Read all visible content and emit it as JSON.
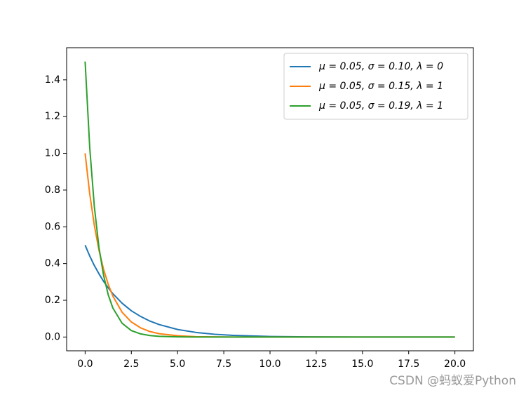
{
  "chart_data": {
    "type": "line",
    "x": [
      0,
      0.25,
      0.5,
      0.75,
      1,
      1.25,
      1.5,
      2,
      2.5,
      3,
      3.5,
      4,
      5,
      6,
      7,
      8,
      10,
      12,
      15,
      20
    ],
    "series": [
      {
        "name": "μ = 0.05,  σ = 0.10,  λ = 0",
        "color": "#1f77b4",
        "values": [
          0.5,
          0.441,
          0.389,
          0.344,
          0.303,
          0.268,
          0.236,
          0.184,
          0.143,
          0.112,
          0.087,
          0.068,
          0.041,
          0.025,
          0.015,
          0.009,
          0.003,
          0.001,
          0,
          0
        ]
      },
      {
        "name": "μ = 0.05,  σ = 0.15,  λ = 1",
        "color": "#ff7f0e",
        "values": [
          1,
          0.779,
          0.607,
          0.472,
          0.368,
          0.287,
          0.223,
          0.135,
          0.082,
          0.05,
          0.03,
          0.018,
          0.007,
          0.002,
          0.001,
          0,
          0,
          0,
          0,
          0
        ]
      },
      {
        "name": "μ = 0.05,  σ = 0.19,  λ = 1",
        "color": "#2ca02c",
        "values": [
          1.5,
          1.031,
          0.709,
          0.487,
          0.335,
          0.23,
          0.158,
          0.075,
          0.035,
          0.017,
          0.008,
          0.004,
          0.001,
          0,
          0,
          0,
          0,
          0,
          0,
          0
        ]
      }
    ],
    "xlim": [
      -1,
      21
    ],
    "ylim": [
      -0.075,
      1.575
    ],
    "xticks": [
      {
        "value": 0,
        "label": "0.0"
      },
      2.5,
      {
        "value": 5,
        "label": "5.0"
      },
      7.5,
      {
        "value": 10,
        "label": "10.0"
      },
      12.5,
      {
        "value": 15,
        "label": "15.0"
      },
      17.5,
      {
        "value": 20,
        "label": "20.0"
      }
    ],
    "yticks": [
      {
        "value": 0,
        "label": "0.0"
      },
      0.2,
      0.4,
      0.6,
      0.8,
      {
        "value": 1,
        "label": "1.0"
      },
      1.2,
      1.4
    ],
    "legend": "upper right",
    "watermark": "CSDN @蚂蚁爱Python"
  }
}
